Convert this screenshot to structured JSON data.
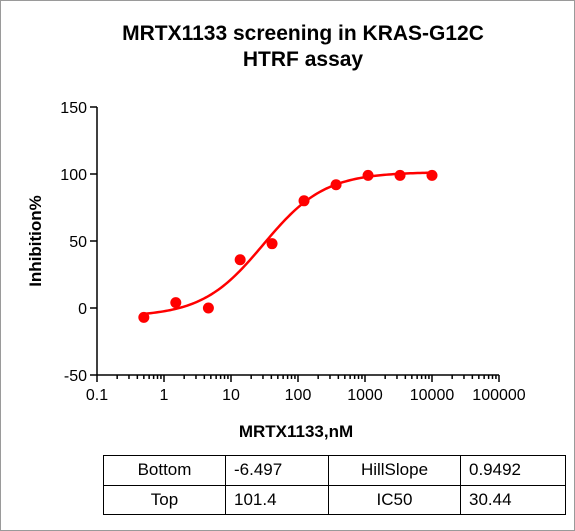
{
  "chart_data": {
    "type": "scatter",
    "title_lines": [
      "MRTX1133 screening in KRAS-G12C",
      "HTRF assay"
    ],
    "xlabel": "MRTX1133,nM",
    "ylabel": "Inhibition%",
    "x_scale": "log",
    "xlim": [
      0.1,
      100000
    ],
    "ylim": [
      -50,
      150
    ],
    "x_tick_labels": [
      "0.1",
      "1",
      "10",
      "100",
      "1000",
      "10000",
      "100000"
    ],
    "x_tick_values": [
      0.1,
      1,
      10,
      100,
      1000,
      10000,
      100000
    ],
    "y_tick_labels": [
      "150",
      "100",
      "50",
      "0",
      "-50"
    ],
    "y_tick_values": [
      150,
      100,
      50,
      0,
      -50
    ],
    "grid": false,
    "series": [
      {
        "x": [
          0.5,
          1.5,
          4.6,
          13.7,
          41,
          123,
          370,
          1111,
          3333,
          10000
        ],
        "y": [
          -7,
          4,
          0,
          36,
          48,
          80,
          92,
          99,
          99,
          99
        ],
        "color": "#ff0000",
        "fit": "four-parameter logistic"
      }
    ],
    "fit_parameters": {
      "bottom": -6.497,
      "top": 101.4,
      "hill_slope": 0.9492,
      "ic50": 30.44
    }
  },
  "table": {
    "rows": [
      [
        {
          "name": "Bottom",
          "value": "-6.497"
        },
        {
          "name": "HillSlope",
          "value": "0.9492"
        }
      ],
      [
        {
          "name": "Top",
          "value": "101.4"
        },
        {
          "name": "IC50",
          "value": "30.44"
        }
      ]
    ]
  }
}
